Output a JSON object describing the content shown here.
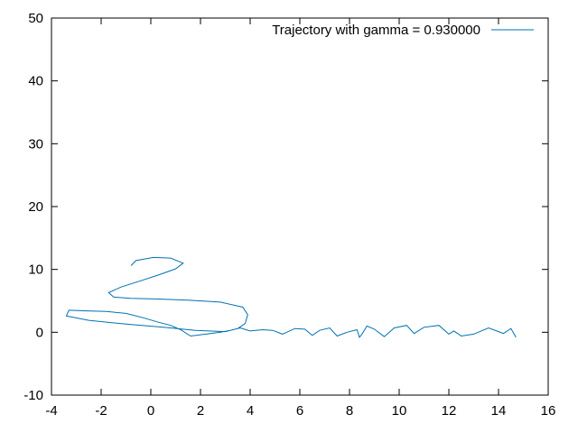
{
  "chart_data": {
    "type": "line",
    "title": "",
    "xlabel": "",
    "ylabel": "",
    "xlim": [
      -4,
      16
    ],
    "ylim": [
      -10,
      50
    ],
    "xticks": [
      -4,
      -2,
      0,
      2,
      4,
      6,
      8,
      10,
      12,
      14,
      16
    ],
    "yticks": [
      -10,
      0,
      10,
      20,
      30,
      40,
      50
    ],
    "grid": false,
    "legend_position": "top-right",
    "series": [
      {
        "name": "Trajectory with gamma = 0.930000",
        "color": "#0072b2",
        "points": [
          [
            14.7,
            -0.8
          ],
          [
            14.5,
            0.6
          ],
          [
            14.2,
            -0.2
          ],
          [
            14.0,
            0.1
          ],
          [
            13.6,
            0.7
          ],
          [
            13.0,
            -0.3
          ],
          [
            12.5,
            -0.6
          ],
          [
            12.2,
            0.2
          ],
          [
            12.0,
            -0.3
          ],
          [
            11.6,
            1.1
          ],
          [
            11.0,
            0.8
          ],
          [
            10.6,
            -0.2
          ],
          [
            10.3,
            1.1
          ],
          [
            9.8,
            0.7
          ],
          [
            9.4,
            -0.7
          ],
          [
            9.0,
            0.5
          ],
          [
            8.7,
            1.0
          ],
          [
            8.5,
            -0.3
          ],
          [
            8.4,
            -0.8
          ],
          [
            8.3,
            0.4
          ],
          [
            7.9,
            0.0
          ],
          [
            7.5,
            -0.6
          ],
          [
            7.2,
            0.7
          ],
          [
            6.8,
            0.3
          ],
          [
            6.5,
            -0.5
          ],
          [
            6.2,
            0.5
          ],
          [
            5.8,
            0.6
          ],
          [
            5.3,
            -0.3
          ],
          [
            4.9,
            0.3
          ],
          [
            4.5,
            0.4
          ],
          [
            4.0,
            0.2
          ],
          [
            3.6,
            0.7
          ],
          [
            3.2,
            0.3
          ],
          [
            2.8,
            0.0
          ],
          [
            2.4,
            -0.2
          ],
          [
            2.0,
            -0.4
          ],
          [
            1.6,
            -0.6
          ],
          [
            1.2,
            0.4
          ],
          [
            0.8,
            1.1
          ],
          [
            0.3,
            1.6
          ],
          [
            -0.3,
            2.3
          ],
          [
            -1.0,
            3.0
          ],
          [
            -1.8,
            3.3
          ],
          [
            -2.6,
            3.4
          ],
          [
            -3.3,
            3.5
          ],
          [
            -3.4,
            2.6
          ],
          [
            -2.5,
            1.9
          ],
          [
            -1.0,
            1.3
          ],
          [
            0.5,
            0.8
          ],
          [
            1.8,
            0.3
          ],
          [
            3.0,
            0.1
          ],
          [
            3.5,
            0.6
          ],
          [
            3.8,
            1.4
          ],
          [
            3.9,
            2.8
          ],
          [
            3.7,
            4.0
          ],
          [
            2.8,
            4.8
          ],
          [
            1.5,
            5.1
          ],
          [
            0.2,
            5.3
          ],
          [
            -0.8,
            5.4
          ],
          [
            -1.5,
            5.6
          ],
          [
            -1.7,
            6.3
          ],
          [
            -1.2,
            7.2
          ],
          [
            -0.4,
            8.2
          ],
          [
            0.3,
            9.1
          ],
          [
            1.0,
            10.1
          ],
          [
            1.3,
            11.0
          ],
          [
            0.8,
            11.8
          ],
          [
            0.1,
            11.9
          ],
          [
            -0.6,
            11.4
          ],
          [
            -0.8,
            10.6
          ]
        ]
      }
    ]
  }
}
